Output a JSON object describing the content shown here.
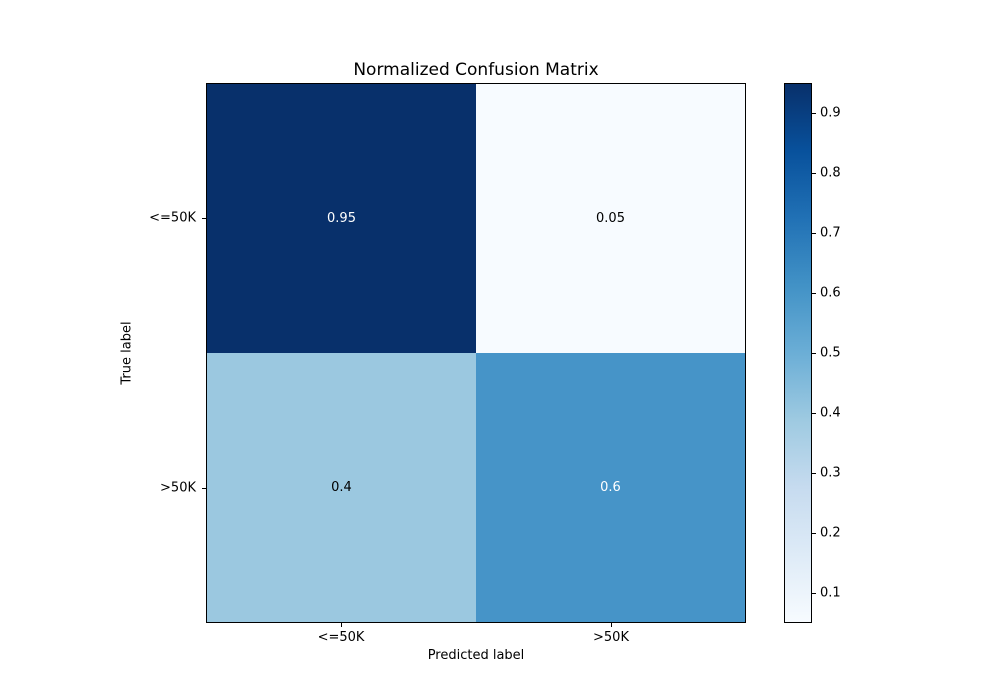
{
  "figure": {
    "background": "#ffffff",
    "kind": "matplotlib-confusion-matrix"
  },
  "chart_data": {
    "type": "heatmap",
    "title": "Normalized Confusion Matrix",
    "xlabel": "Predicted label",
    "ylabel": "True label",
    "x_categories": [
      "<=50K",
      ">50K"
    ],
    "y_categories": [
      "<=50K",
      ">50K"
    ],
    "matrix": [
      [
        0.95,
        0.05
      ],
      [
        0.4,
        0.6
      ]
    ],
    "cells": [
      {
        "row": "<=50K",
        "col": "<=50K",
        "value": "0.95",
        "bg": "#08306b",
        "text_color": "#ffffff"
      },
      {
        "row": "<=50K",
        "col": ">50K",
        "value": "0.05",
        "bg": "#f7fbff",
        "text_color": "#000000"
      },
      {
        "row": ">50K",
        "col": "<=50K",
        "value": "0.4",
        "bg": "#9bc8e0",
        "text_color": "#000000"
      },
      {
        "row": ">50K",
        "col": ">50K",
        "value": "0.6",
        "bg": "#4694c8",
        "text_color": "#ffffff"
      }
    ],
    "colormap": "Blues",
    "vmin": 0.05,
    "vmax": 0.95,
    "grid": false,
    "legend_position": "colorbar-right",
    "colorbar": {
      "tick_labels": [
        "0.9",
        "0.8",
        "0.7",
        "0.6",
        "0.5",
        "0.4",
        "0.3",
        "0.2",
        "0.1"
      ],
      "gradient_stops": [
        "#f7fbff",
        "#deebf7",
        "#c6dbef",
        "#9ecae1",
        "#6baed6",
        "#4292c6",
        "#2171b5",
        "#08519c",
        "#08306b"
      ]
    }
  }
}
